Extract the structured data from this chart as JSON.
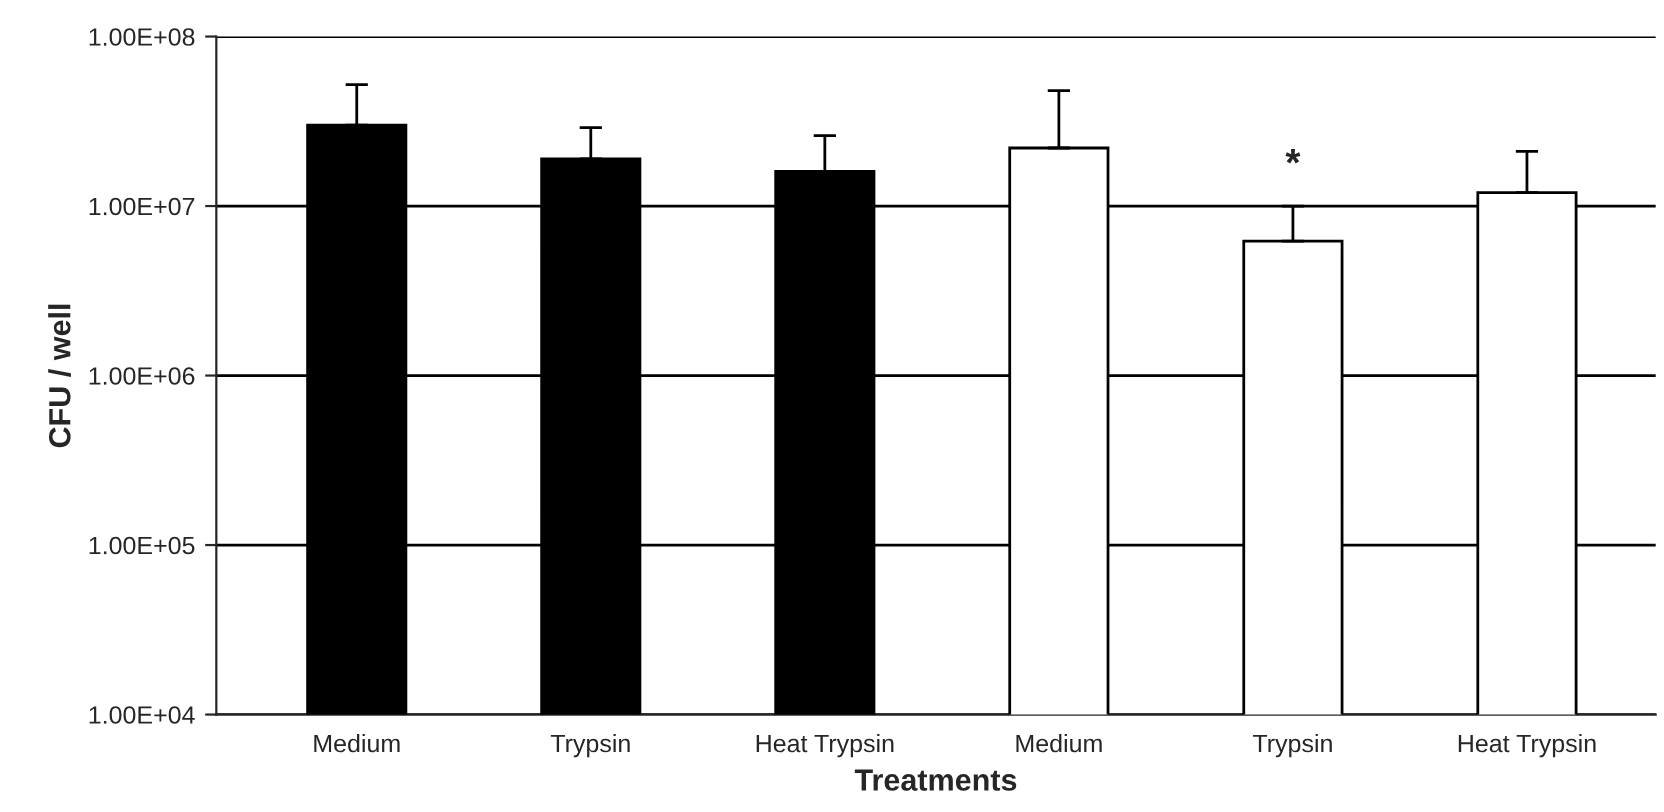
{
  "chart_data": {
    "type": "bar",
    "xlabel": "Treatments",
    "ylabel": "CFU / well",
    "categories": [
      "Medium",
      "Trypsin",
      "Heat Trypsin",
      "Medium",
      "Trypsin",
      "Heat Trypsin"
    ],
    "values": [
      30000000,
      19000000,
      16000000,
      22000000,
      6200000,
      12000000
    ],
    "colors": [
      "#000000",
      "#000000",
      "#000000",
      "#ffffff",
      "#ffffff",
      "#ffffff"
    ],
    "errors": [
      [
        30000000,
        52000000
      ],
      [
        19000000,
        29000000
      ],
      [
        16000000,
        26000000
      ],
      [
        22000000,
        48000000
      ],
      [
        6200000,
        10000000
      ],
      [
        12000000,
        21000000
      ]
    ],
    "log": "y",
    "ylim": [
      10000,
      100000000
    ],
    "yticks": [
      {
        "value": 10000,
        "label": "1.00E+04"
      },
      {
        "value": 100000,
        "label": "1.00E+05"
      },
      {
        "value": 1000000,
        "label": "1.00E+06"
      },
      {
        "value": 10000000,
        "label": "1.00E+07"
      },
      {
        "value": 100000000,
        "label": "1.00E+08"
      }
    ],
    "grid": "y",
    "annotations": [
      "*"
    ]
  }
}
